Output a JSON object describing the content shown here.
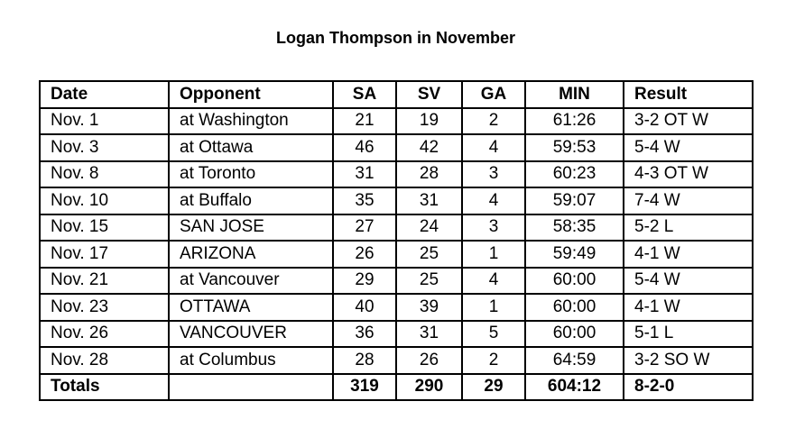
{
  "title": "Logan Thompson in November",
  "columns": [
    "Date",
    "Opponent",
    "SA",
    "SV",
    "GA",
    "MIN",
    "Result"
  ],
  "rows": [
    [
      "Nov. 1",
      "at Washington",
      "21",
      "19",
      "2",
      "61:26",
      "3-2 OT W"
    ],
    [
      "Nov. 3",
      "at Ottawa",
      "46",
      "42",
      "4",
      "59:53",
      "5-4 W"
    ],
    [
      "Nov. 8",
      "at Toronto",
      "31",
      "28",
      "3",
      "60:23",
      "4-3 OT W"
    ],
    [
      "Nov. 10",
      "at Buffalo",
      "35",
      "31",
      "4",
      "59:07",
      "7-4 W"
    ],
    [
      "Nov. 15",
      "SAN JOSE",
      "27",
      "24",
      "3",
      "58:35",
      "5-2 L"
    ],
    [
      "Nov. 17",
      "ARIZONA",
      "26",
      "25",
      "1",
      "59:49",
      "4-1 W"
    ],
    [
      "Nov. 21",
      "at Vancouver",
      "29",
      "25",
      "4",
      "60:00",
      "5-4 W"
    ],
    [
      "Nov. 23",
      "OTTAWA",
      "40",
      "39",
      "1",
      "60:00",
      "4-1 W"
    ],
    [
      "Nov. 26",
      "VANCOUVER",
      "36",
      "31",
      "5",
      "60:00",
      "5-1 L"
    ],
    [
      "Nov. 28",
      "at Columbus",
      "28",
      "26",
      "2",
      "64:59",
      "3-2 SO W"
    ]
  ],
  "totals": [
    "Totals",
    "",
    "319",
    "290",
    "29",
    "604:12",
    "8-2-0"
  ]
}
